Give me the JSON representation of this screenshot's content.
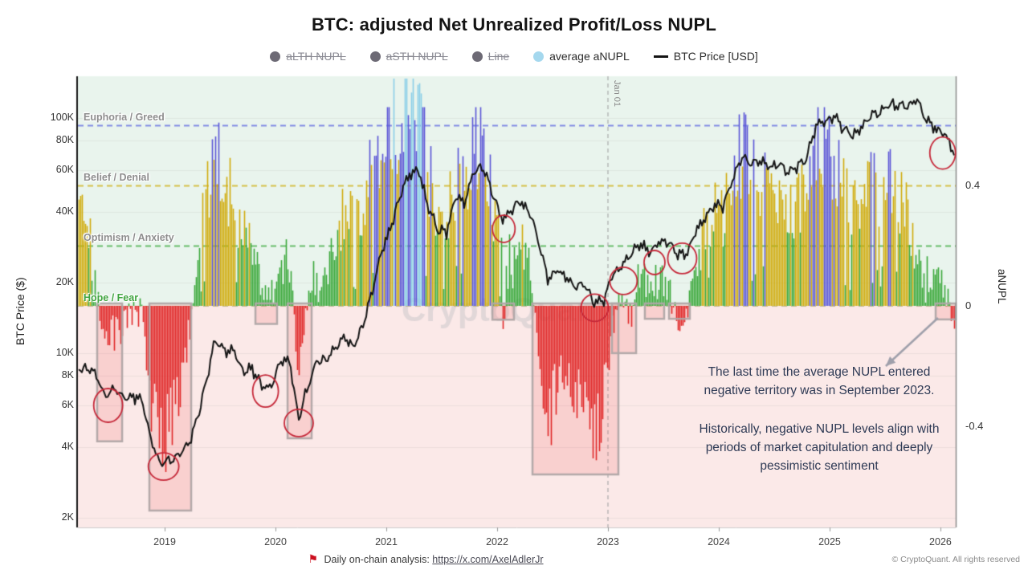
{
  "title": "BTC: adjusted Net Unrealized Profit/Loss NUPL",
  "legend": {
    "items": [
      {
        "label": "aLTH NUPL",
        "marker": "dot",
        "color": "#6d6a75",
        "struck": true
      },
      {
        "label": "aSTH NUPL",
        "marker": "dot",
        "color": "#6d6a75",
        "struck": true
      },
      {
        "label": "Line",
        "marker": "dot",
        "color": "#6d6a75",
        "struck": true
      },
      {
        "label": "average aNUPL",
        "marker": "dot",
        "color": "#a5d8ee",
        "struck": false
      },
      {
        "label": "BTC Price [USD]",
        "marker": "line",
        "color": "#141414",
        "struck": false
      }
    ]
  },
  "left_axis": {
    "label": "BTC Price ($)",
    "ticks": [
      {
        "label": "100K",
        "value": 100
      },
      {
        "label": "80K",
        "value": 80
      },
      {
        "label": "60K",
        "value": 60
      },
      {
        "label": "40K",
        "value": 40
      },
      {
        "label": "20K",
        "value": 20
      },
      {
        "label": "10K",
        "value": 10
      },
      {
        "label": "8K",
        "value": 8
      },
      {
        "label": "6K",
        "value": 6
      },
      {
        "label": "4K",
        "value": 4
      },
      {
        "label": "2K",
        "value": 2
      }
    ]
  },
  "right_axis": {
    "label": "aNUPL",
    "ticks": [
      {
        "label": "0.4",
        "value": 0.4
      },
      {
        "label": "0",
        "value": 0
      },
      {
        "label": "-0.4",
        "value": -0.4
      }
    ]
  },
  "x_axis": {
    "ticks": [
      {
        "label": "2019",
        "value": 2019
      },
      {
        "label": "2020",
        "value": 2020
      },
      {
        "label": "2021",
        "value": 2021
      },
      {
        "label": "2022",
        "value": 2022
      },
      {
        "label": "2023",
        "value": 2023
      },
      {
        "label": "2024",
        "value": 2024
      },
      {
        "label": "2025",
        "value": 2025
      },
      {
        "label": "2026",
        "value": 2026
      }
    ]
  },
  "watermark": "CryptoQuant",
  "annotation": {
    "para1": "The last time the average NUPL entered negative territory was in September 2023.",
    "para2": "Historically, negative NUPL levels align with periods of market capitulation and deeply pessimistic sentiment"
  },
  "footer": {
    "text": "Daily on-chain analysis:",
    "link": "https://x.com/AxelAdlerJr",
    "copyright": "© CryptoQuant. All rights reserved"
  },
  "chart_data": {
    "type": "bar+line",
    "start_month": "2018-04",
    "unit": "month",
    "series": [
      {
        "name": "average aNUPL",
        "type": "bar",
        "axis": "aNUPL",
        "values": [
          0.32,
          0.06,
          -0.08,
          -0.1,
          -0.08,
          -0.02,
          -0.02,
          -0.3,
          -0.48,
          -0.38,
          -0.3,
          -0.12,
          0.15,
          0.38,
          0.52,
          0.45,
          0.33,
          0.28,
          0.15,
          0.08,
          0.04,
          0.12,
          0.16,
          -0.25,
          0.06,
          0.12,
          0.14,
          0.22,
          0.3,
          0.26,
          0.34,
          0.46,
          0.56,
          0.62,
          0.69,
          0.72,
          0.7,
          0.45,
          0.34,
          0.3,
          0.42,
          0.4,
          0.52,
          0.54,
          0.35,
          0.15,
          0.18,
          0.22,
          0.15,
          -0.12,
          -0.42,
          -0.25,
          -0.18,
          -0.28,
          -0.26,
          -0.44,
          -0.32,
          -0.08,
          0.06,
          -0.05,
          0.14,
          0.04,
          0.12,
          0.08,
          -0.04,
          -0.05,
          0.14,
          0.24,
          0.32,
          0.3,
          0.42,
          0.52,
          0.44,
          0.42,
          0.38,
          0.36,
          0.28,
          0.34,
          0.4,
          0.54,
          0.55,
          0.5,
          0.38,
          0.3,
          0.33,
          0.4,
          0.38,
          0.43,
          0.36,
          0.28,
          0.16,
          0.1,
          0.07,
          0.05,
          -0.04
        ]
      },
      {
        "name": "BTC Price [USD]",
        "type": "line",
        "axis": "BTC Price ($)",
        "unit": "thousand_usd",
        "values": [
          8.6,
          8.3,
          6.6,
          7.2,
          6.4,
          6.6,
          6.4,
          4.3,
          3.4,
          3.5,
          3.7,
          4.0,
          5.2,
          7.6,
          11.5,
          10.2,
          10.2,
          8.4,
          8.6,
          7.2,
          7.2,
          9.2,
          9.4,
          5.3,
          7.2,
          9.3,
          9.3,
          10.8,
          11.6,
          10.7,
          13.2,
          18.5,
          27,
          34,
          47,
          57,
          60,
          42,
          34,
          32.5,
          46,
          44,
          60,
          62,
          48,
          37,
          40,
          44,
          40,
          30,
          20.5,
          22.5,
          21,
          19.3,
          19.5,
          16.5,
          16.8,
          21.5,
          23.5,
          27,
          29,
          27,
          29.5,
          29.5,
          26.5,
          26.5,
          33,
          37,
          43,
          42.5,
          55,
          68,
          64,
          67,
          62,
          64,
          59,
          62,
          68,
          91,
          97,
          101,
          91,
          84,
          92,
          105,
          106,
          114,
          112,
          113,
          119,
          98,
          90,
          86,
          72
        ]
      }
    ],
    "bands": [
      {
        "label": "Euphoria / Greed",
        "level": 0.6,
        "line_color": "#828be4",
        "label_color": "#8d8d8d"
      },
      {
        "label": "Belief / Denial",
        "level": 0.4,
        "line_color": "#d6c14a",
        "label_color": "#8d8d8d"
      },
      {
        "label": "Optimism / Anxiety",
        "level": 0.2,
        "line_color": "#68bd6b",
        "label_color": "#8d8d8d"
      },
      {
        "label": "Hope / Fear",
        "level": 0,
        "line_color": "#c0b894",
        "label_color": "#3fa43f"
      }
    ],
    "bar_colors": {
      "negative": "#e02828",
      "hope": "#3aa83a",
      "optimism": "#d2ab0c",
      "belief": "#5b55d8",
      "euphoria": "#8bcfe9"
    },
    "color_thresholds": [
      0,
      0.26,
      0.495,
      0.675
    ],
    "background": {
      "positive": "#e9f4ed",
      "negative": "#fbe9e8"
    },
    "price_line_color": "#141414",
    "anupl_range": [
      -0.74,
      0.76
    ],
    "price_scale": "log",
    "event_line": {
      "label": "Jan 01",
      "t": 2023.0
    },
    "highlights": [
      [
        2018.391,
        2018.616,
        -0.45
      ],
      [
        2018.862,
        2019.239,
        -0.68
      ],
      [
        2019.819,
        2020.014,
        -0.06
      ],
      [
        2020.109,
        2020.326,
        -0.44
      ],
      [
        2021.957,
        2022.152,
        -0.046
      ],
      [
        2022.319,
        2023.094,
        -0.56
      ],
      [
        2023.036,
        2023.254,
        -0.157
      ],
      [
        2023.333,
        2023.507,
        -0.043
      ],
      [
        2023.551,
        2023.739,
        -0.043
      ],
      [
        2025.957,
        2026.138,
        -0.045
      ]
    ],
    "highlight_style": {
      "fill": "rgba(246,110,110,0.20)",
      "stroke": "#b0a7a7"
    },
    "circles": [
      [
        2018.49,
        6.0,
        18,
        21
      ],
      [
        2018.99,
        3.3,
        19,
        17
      ],
      [
        2019.91,
        6.9,
        16,
        20
      ],
      [
        2020.21,
        5.05,
        18,
        17
      ],
      [
        2022.06,
        33.8,
        14,
        17
      ],
      [
        2022.88,
        15.6,
        17,
        17
      ],
      [
        2023.14,
        20.3,
        17,
        17
      ],
      [
        2023.42,
        24.3,
        13,
        15
      ],
      [
        2023.67,
        25.3,
        18,
        19
      ],
      [
        2026.02,
        71,
        16,
        20
      ]
    ],
    "circle_color": "#c62839",
    "micro_dips": [
      [
        2022.05,
        2022.08,
        -0.06
      ]
    ],
    "arrow": {
      "from_t": 2025.978,
      "from_v": -0.04,
      "to_t": 2025.507,
      "to_v": -0.2,
      "color": "#9fa0ab"
    }
  }
}
